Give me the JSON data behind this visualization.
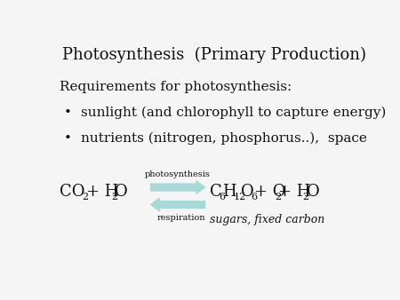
{
  "title": "Photosynthesis  (Primary Production)",
  "title_fontsize": 13,
  "title_color": "#222222",
  "bg_color": "#f5f5f5",
  "req_text": "Requirements for photosynthesis:",
  "req_fontsize": 11,
  "bullets": [
    "sunlight (and chlorophyll to capture energy)",
    "nutrients (nitrogen, phosphorus..),  space"
  ],
  "bullet_fontsize": 11,
  "photosynthesis_label": "photosynthesis",
  "respiration_label": "respiration",
  "label_fontsize": 7,
  "arrow_color": "#a8d8d8",
  "formula_fontsize": 13,
  "sub_fontsize": 8,
  "sugars_text": "sugars, fixed carbon",
  "sugars_fontsize": 9,
  "text_color": "#111111"
}
